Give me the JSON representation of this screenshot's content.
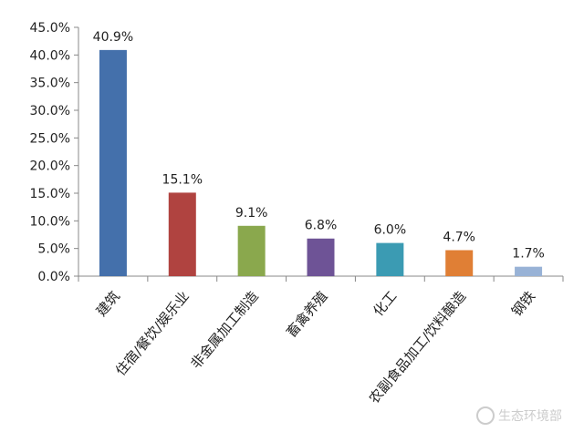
{
  "chart_data": {
    "type": "bar",
    "title": "",
    "xlabel": "",
    "ylabel": "",
    "categories": [
      "建筑",
      "住宿/餐饮/娱乐业",
      "非金属加工制造",
      "畜禽养殖",
      "化工",
      "农副食品加工/饮料酿造",
      "钢铁"
    ],
    "values": [
      40.9,
      15.1,
      9.1,
      6.8,
      6.0,
      4.7,
      1.7
    ],
    "data_labels": [
      "40.9%",
      "15.1%",
      "9.1%",
      "6.8%",
      "6.0%",
      "4.7%",
      "1.7%"
    ],
    "colors": [
      "#4470ab",
      "#b04340",
      "#8aa84d",
      "#6e5396",
      "#3b9bb3",
      "#e07f35",
      "#98b2d6"
    ],
    "ylim": [
      0,
      45
    ],
    "yticks": [
      "0.0%",
      "5.0%",
      "10.0%",
      "15.0%",
      "20.0%",
      "25.0%",
      "30.0%",
      "35.0%",
      "40.0%",
      "45.0%"
    ],
    "grid": false,
    "legend": "none"
  },
  "watermark": {
    "text": "生态环境部",
    "icon": "weibo-icon"
  }
}
